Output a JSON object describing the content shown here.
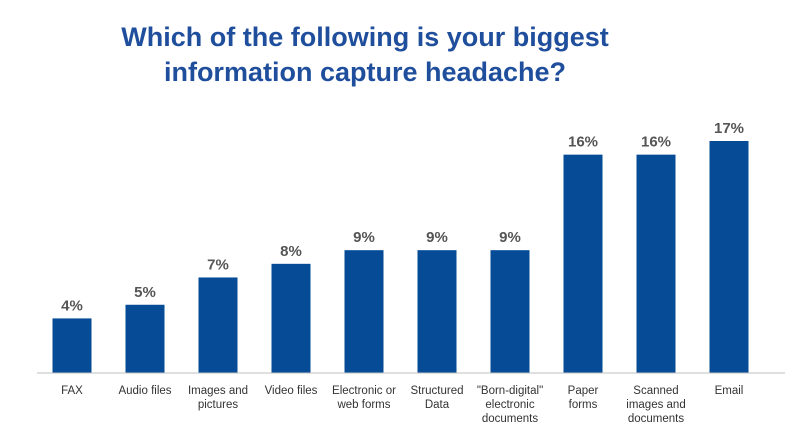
{
  "chart_data": {
    "type": "bar",
    "title_lines": [
      "Which of the following is your biggest",
      "information capture headache?"
    ],
    "categories": [
      [
        "FAX"
      ],
      [
        "Audio files"
      ],
      [
        "Images and",
        "pictures"
      ],
      [
        "Video files"
      ],
      [
        "Electronic or",
        "web forms"
      ],
      [
        "Structured",
        "Data"
      ],
      [
        "\"Born-digital\"",
        "electronic",
        "documents"
      ],
      [
        "Paper",
        "forms"
      ],
      [
        "Scanned",
        "images and",
        "documents"
      ],
      [
        "Email"
      ]
    ],
    "values": [
      4,
      5,
      7,
      8,
      9,
      9,
      9,
      16,
      16,
      17
    ],
    "value_labels": [
      "4%",
      "5%",
      "7%",
      "8%",
      "9%",
      "9%",
      "9%",
      "16%",
      "16%",
      "17%"
    ],
    "ylim": [
      0,
      17.5
    ],
    "grid": false,
    "legend": "none",
    "bar_color": "#064b95",
    "title_color": "#1f4e9c"
  }
}
